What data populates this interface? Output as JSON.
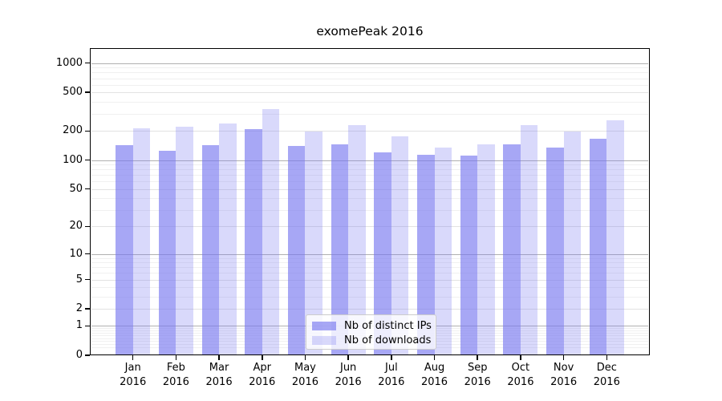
{
  "chart_data": {
    "type": "bar",
    "title": "exomePeak 2016",
    "x": [
      "Jan",
      "Feb",
      "Mar",
      "Apr",
      "May",
      "Jun",
      "Jul",
      "Aug",
      "Sep",
      "Oct",
      "Nov",
      "Dec"
    ],
    "x_year": "2016",
    "categories": [
      "Jan 2016",
      "Feb 2016",
      "Mar 2016",
      "Apr 2016",
      "May 2016",
      "Jun 2016",
      "Jul 2016",
      "Aug 2016",
      "Sep 2016",
      "Oct 2016",
      "Nov 2016",
      "Dec 2016"
    ],
    "series": [
      {
        "name": "Nb of distinct IPs",
        "color": "rgba(120,120,240,0.65)",
        "color_hex": "#a7a7f5",
        "values": [
          142,
          126,
          142,
          210,
          139,
          146,
          120,
          114,
          111,
          145,
          134,
          165
        ]
      },
      {
        "name": "Nb of downloads",
        "color": "rgba(120,120,240,0.28)",
        "color_hex": "#d9d9fa",
        "values": [
          212,
          222,
          238,
          338,
          197,
          230,
          177,
          136,
          145,
          230,
          197,
          257
        ]
      }
    ],
    "y_ticks": [
      0,
      1,
      2,
      5,
      10,
      20,
      50,
      100,
      200,
      500,
      1000
    ],
    "y_scale": "log10(1+x)",
    "ylim": [
      0,
      1425
    ],
    "grid": true,
    "legend": {
      "labels": [
        "Nb of distinct IPs",
        "Nb of downloads"
      ],
      "position": "lower center"
    },
    "grid_colors": {
      "decade": "#b0b0b0",
      "labeled": "#e2e2e2",
      "minor": "#f0f0f0"
    }
  }
}
